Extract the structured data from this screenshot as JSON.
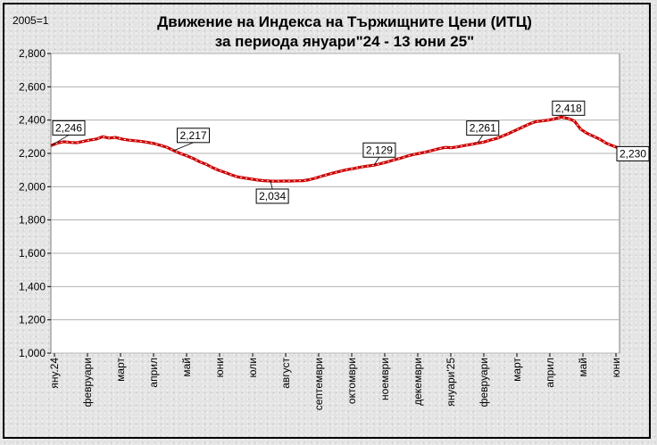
{
  "chart_data": {
    "type": "line",
    "title_line1": "Движение на Индекса на Тържищните Цени (ИТЦ)",
    "title_line2": "за периода януари\"24 - 13 юни 25\"",
    "base_note": "2005=1",
    "ylim": [
      1000,
      2800
    ],
    "yticks": [
      "1,000",
      "1,200",
      "1,400",
      "1,600",
      "1,800",
      "2,000",
      "2,200",
      "2,400",
      "2,600",
      "2,800"
    ],
    "ytick_values": [
      1000,
      1200,
      1400,
      1600,
      1800,
      2000,
      2200,
      2400,
      2600,
      2800
    ],
    "x_labels": [
      "яну.24",
      "февруари",
      "март",
      "април",
      "май",
      "юни",
      "юли",
      "август",
      "септември",
      "октомври",
      "ноември",
      "декември",
      "януари'25",
      "февруари",
      "март",
      "април",
      "май",
      "юни"
    ],
    "grid": true,
    "line_color": "#cc0000",
    "series": [
      {
        "values": [
          2246,
          2262,
          2270,
          2266,
          2264,
          2272,
          2280,
          2286,
          2300,
          2292,
          2296,
          2286,
          2280,
          2276,
          2272,
          2266,
          2259,
          2248,
          2236,
          2217,
          2200,
          2186,
          2170,
          2150,
          2135,
          2115,
          2098,
          2085,
          2070,
          2058,
          2052,
          2046,
          2040,
          2036,
          2034,
          2033,
          2034,
          2034,
          2035,
          2036,
          2042,
          2052,
          2064,
          2075,
          2085,
          2095,
          2103,
          2110,
          2118,
          2124,
          2129,
          2138,
          2148,
          2160,
          2170,
          2182,
          2192,
          2200,
          2208,
          2218,
          2228,
          2236,
          2234,
          2240,
          2247,
          2254,
          2261,
          2268,
          2280,
          2290,
          2306,
          2322,
          2340,
          2358,
          2376,
          2390,
          2395,
          2400,
          2408,
          2418,
          2410,
          2395,
          2345,
          2320,
          2302,
          2284,
          2260,
          2245,
          2230
        ]
      }
    ],
    "data_labels": [
      {
        "index": 0,
        "text": "2,246"
      },
      {
        "index": 19,
        "text": "2,217"
      },
      {
        "index": 34,
        "text": "2,034"
      },
      {
        "index": 50,
        "text": "2,129"
      },
      {
        "index": 66,
        "text": "2,261"
      },
      {
        "index": 79,
        "text": "2,418"
      },
      {
        "index": 88,
        "text": "2,230"
      }
    ]
  }
}
